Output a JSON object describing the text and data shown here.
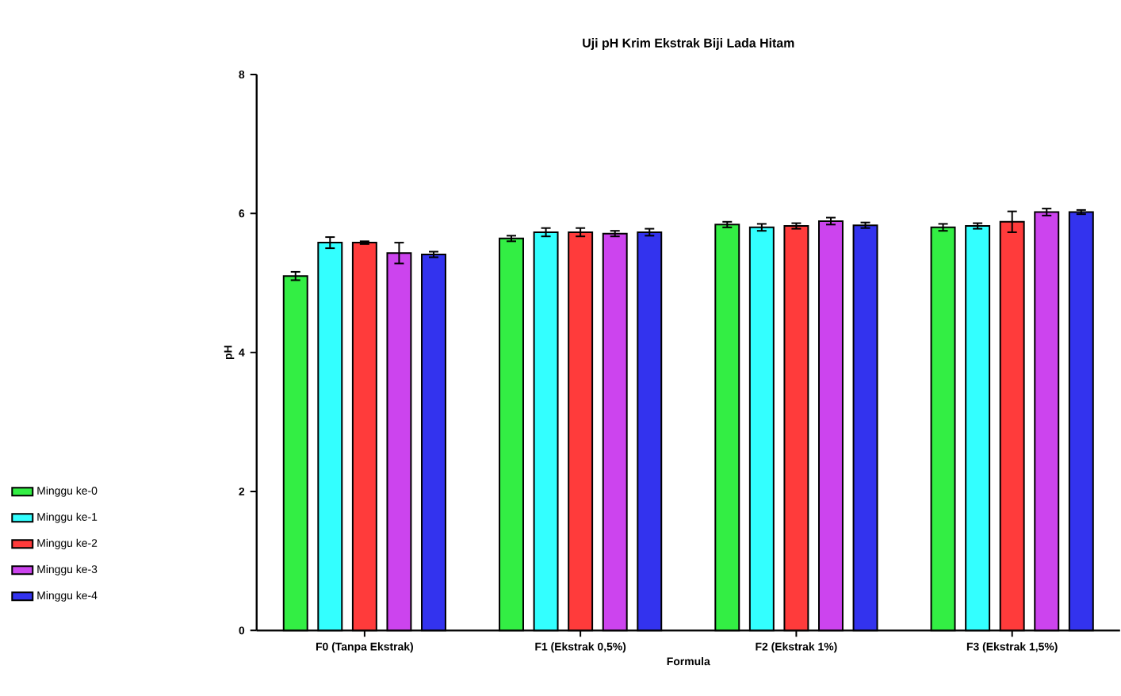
{
  "chart_data": {
    "type": "bar",
    "title": "Uji pH Krim Ekstrak Biji Lada Hitam",
    "xlabel": "Formula",
    "ylabel": "pH",
    "categories": [
      "F0 (Tanpa Ekstrak)",
      "F1 (Ekstrak 0,5%)",
      "F2 (Ekstrak 1%)",
      "F3 (Ekstrak 1,5%)"
    ],
    "series": [
      {
        "name": "Minggu ke-0",
        "color": "#33ee44",
        "values": [
          5.1,
          5.64,
          5.84,
          5.8
        ],
        "errors": [
          0.06,
          0.04,
          0.04,
          0.05
        ]
      },
      {
        "name": "Minggu ke-1",
        "color": "#33ffff",
        "values": [
          5.58,
          5.73,
          5.8,
          5.82
        ],
        "errors": [
          0.08,
          0.06,
          0.05,
          0.04
        ]
      },
      {
        "name": "Minggu ke-2",
        "color": "#ff3b3b",
        "values": [
          5.58,
          5.73,
          5.82,
          5.88
        ],
        "errors": [
          0.02,
          0.06,
          0.04,
          0.15
        ]
      },
      {
        "name": "Minggu ke-3",
        "color": "#cc44ee",
        "values": [
          5.43,
          5.71,
          5.89,
          6.02
        ],
        "errors": [
          0.15,
          0.04,
          0.05,
          0.05
        ]
      },
      {
        "name": "Minggu ke-4",
        "color": "#3333ee",
        "values": [
          5.41,
          5.73,
          5.83,
          6.02
        ],
        "errors": [
          0.04,
          0.05,
          0.04,
          0.03
        ]
      }
    ],
    "ylim": [
      0,
      8
    ],
    "yticks": [
      0,
      2,
      4,
      6,
      8
    ],
    "legend": "left",
    "grid": false
  }
}
